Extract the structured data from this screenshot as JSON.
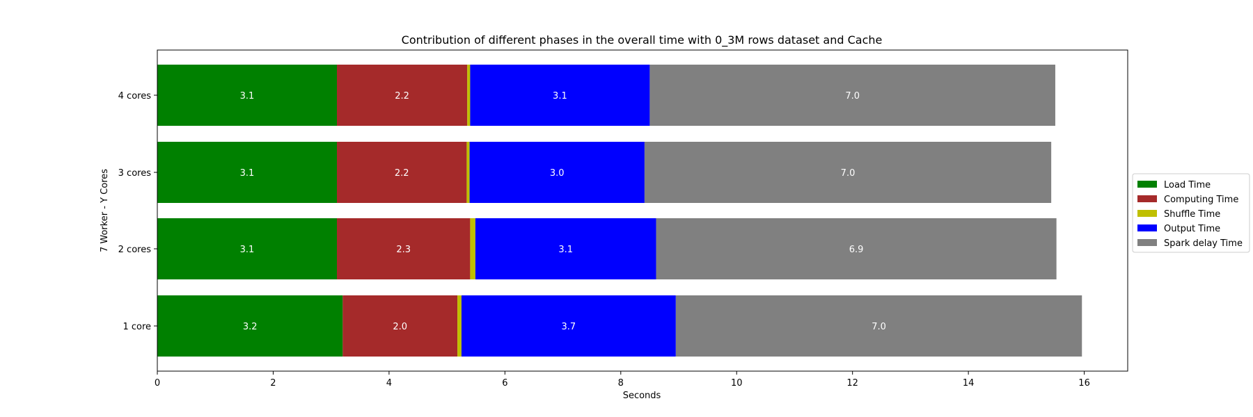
{
  "chart_data": {
    "type": "bar",
    "orientation": "horizontal",
    "stacked": true,
    "title": "Contribution of different phases in the overall time with 0_3M rows dataset and Cache",
    "xlabel": "Seconds",
    "ylabel": "7 Worker - Y Cores",
    "categories": [
      "1 core",
      "2 cores",
      "3 cores",
      "4 cores"
    ],
    "xlim": [
      0,
      16.75
    ],
    "xticks": [
      0,
      2,
      4,
      6,
      8,
      10,
      12,
      14,
      16
    ],
    "series": [
      {
        "name": "Load Time",
        "color": "#008000",
        "values": [
          3.2,
          3.1,
          3.1,
          3.1
        ],
        "labels": [
          "3.2",
          "3.1",
          "3.1",
          "3.1"
        ]
      },
      {
        "name": "Computing Time",
        "color": "#a52a2a",
        "values": [
          1.98,
          2.3,
          2.24,
          2.25
        ],
        "labels": [
          "2.0",
          "2.3",
          "2.2",
          "2.2"
        ]
      },
      {
        "name": "Shuffle Time",
        "color": "#bfbf00",
        "values": [
          0.07,
          0.09,
          0.05,
          0.05
        ],
        "labels": []
      },
      {
        "name": "Output Time",
        "color": "#0000ff",
        "values": [
          3.7,
          3.12,
          3.02,
          3.1
        ],
        "labels": [
          "3.7",
          "3.1",
          "3.0",
          "3.1"
        ]
      },
      {
        "name": "Spark delay Time",
        "color": "#808080",
        "values": [
          7.01,
          6.91,
          7.02,
          7.0
        ],
        "labels": [
          "7.0",
          "6.9",
          "7.0",
          "7.0"
        ]
      }
    ],
    "grid": false,
    "legend_position": "center-right-outside"
  }
}
